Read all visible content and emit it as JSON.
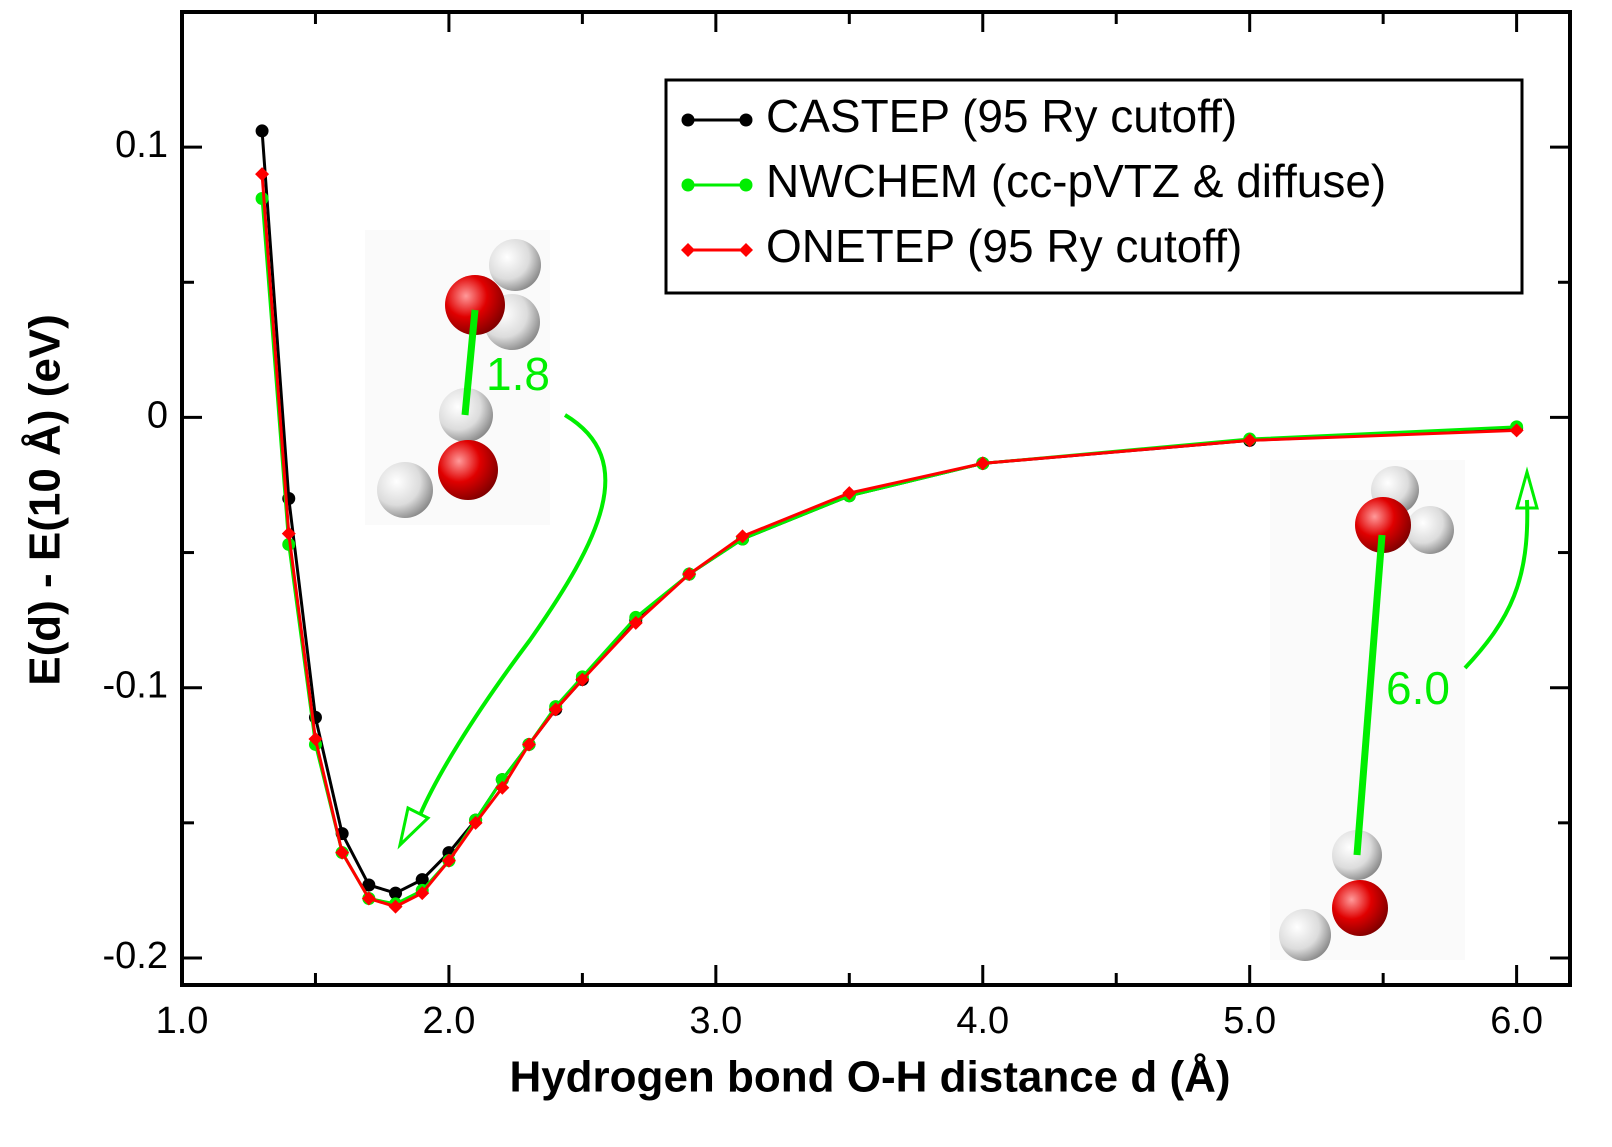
{
  "chart_data": {
    "type": "line",
    "xlabel": "Hydrogen bond O-H distance d (Å)",
    "ylabel": "E(d) - E(10 Å)  (eV)",
    "x": [
      1.3,
      1.4,
      1.5,
      1.6,
      1.7,
      1.8,
      1.9,
      2.0,
      2.1,
      2.2,
      2.3,
      2.4,
      2.5,
      2.7,
      2.9,
      3.1,
      3.5,
      4.0,
      5.0,
      6.0
    ],
    "series": [
      {
        "name": "CASTEP (95 Ry cutoff)",
        "color": "#000000",
        "marker": "circle",
        "values": [
          0.106,
          -0.03,
          -0.111,
          -0.154,
          -0.173,
          -0.176,
          -0.171,
          -0.161,
          -0.149,
          -0.134,
          -0.121,
          -0.108,
          -0.097,
          -0.075,
          -0.058,
          -0.045,
          -0.029,
          -0.017,
          -0.0085,
          -0.004
        ]
      },
      {
        "name": "NWCHEM (cc-pVTZ & diffuse)",
        "color": "#00ee00",
        "marker": "circle",
        "values": [
          0.081,
          -0.047,
          -0.121,
          -0.161,
          -0.178,
          -0.18,
          -0.175,
          -0.164,
          -0.149,
          -0.134,
          -0.121,
          -0.107,
          -0.096,
          -0.074,
          -0.058,
          -0.045,
          -0.029,
          -0.017,
          -0.008,
          -0.0035
        ]
      },
      {
        "name": "ONETEP (95 Ry cutoff)",
        "color": "#ff0000",
        "marker": "diamond",
        "values": [
          0.09,
          -0.043,
          -0.119,
          -0.161,
          -0.178,
          -0.181,
          -0.176,
          -0.164,
          -0.15,
          -0.137,
          -0.121,
          -0.108,
          -0.097,
          -0.076,
          -0.058,
          -0.044,
          -0.028,
          -0.017,
          -0.0085,
          -0.0048
        ]
      }
    ],
    "xlim": [
      1.0,
      6.2
    ],
    "ylim": [
      -0.21,
      0.15
    ],
    "xticks": [
      {
        "value": 1.0,
        "label": "1.0"
      },
      {
        "value": 2.0,
        "label": "2.0"
      },
      {
        "value": 3.0,
        "label": "3.0"
      },
      {
        "value": 4.0,
        "label": "4.0"
      },
      {
        "value": 5.0,
        "label": "5.0"
      },
      {
        "value": 6.0,
        "label": "6.0"
      }
    ],
    "xminorticks": [
      1.5,
      2.5,
      3.5,
      4.5,
      5.5
    ],
    "yticks": [
      -0.2,
      -0.1,
      0,
      0.1
    ],
    "yminorticks": [
      -0.15,
      -0.05,
      0.05
    ],
    "legend": "upper right",
    "annotations": [
      "1.8",
      "6.0"
    ]
  }
}
